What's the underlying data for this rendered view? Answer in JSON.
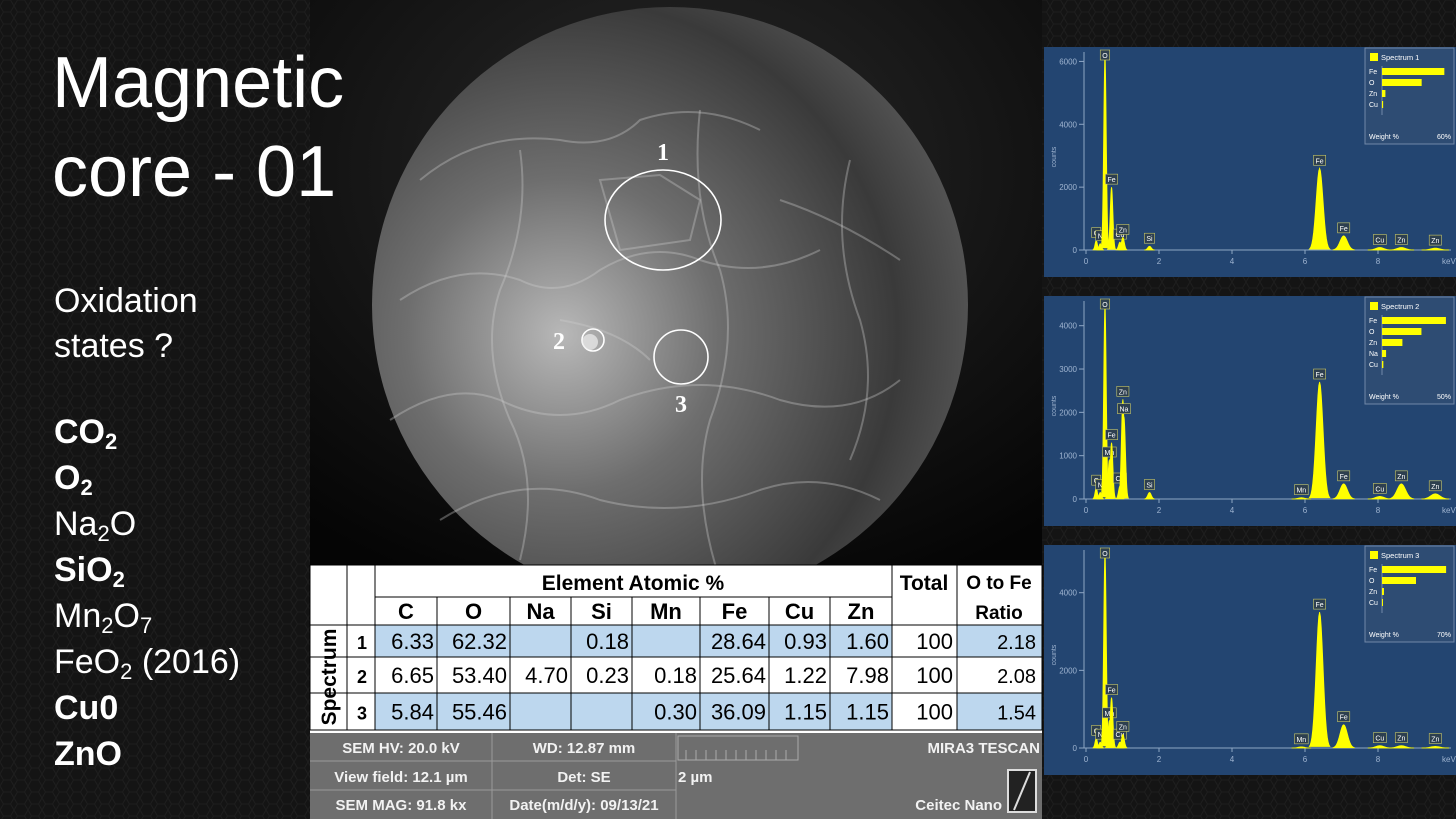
{
  "title": {
    "lines": [
      "Magnetic",
      "core - 01"
    ]
  },
  "question": {
    "lines": [
      "Oxidation",
      "states ?"
    ]
  },
  "compounds": [
    {
      "segments": [
        "CO",
        "2"
      ],
      "bold": true
    },
    {
      "segments": [
        "O",
        "2"
      ],
      "bold": true
    },
    {
      "segments": [
        "Na",
        "2",
        "O"
      ],
      "bold": false
    },
    {
      "segments": [
        "SiO",
        "2"
      ],
      "bold": true
    },
    {
      "segments": [
        "Mn",
        "2",
        "O",
        "7"
      ],
      "bold": false
    },
    {
      "segments": [
        "FeO",
        "2",
        " (2016)"
      ],
      "bold": false
    },
    {
      "segments": [
        "Cu0"
      ],
      "bold": true
    },
    {
      "segments": [
        "ZnO"
      ],
      "bold": true
    }
  ],
  "sem_image": {
    "regions": [
      "1",
      "2",
      "3"
    ]
  },
  "table": {
    "group_header": "Element Atomic %",
    "total_header": "Total",
    "ratio_header": [
      "O to Fe",
      "Ratio"
    ],
    "row_header": "Spectrum",
    "columns": [
      "C",
      "O",
      "Na",
      "Si",
      "Mn",
      "Fe",
      "Cu",
      "Zn"
    ],
    "rows": [
      {
        "label": "1",
        "cells": [
          "6.33",
          "62.32",
          null,
          "0.18",
          null,
          "28.64",
          "0.93",
          "1.60"
        ],
        "total": "100",
        "ratio": "2.18",
        "shaded": true
      },
      {
        "label": "2",
        "cells": [
          "6.65",
          "53.40",
          "4.70",
          "0.23",
          "0.18",
          "25.64",
          "1.22",
          "7.98"
        ],
        "total": "100",
        "ratio": "2.08",
        "shaded": false
      },
      {
        "label": "3",
        "cells": [
          "5.84",
          "55.46",
          null,
          null,
          "0.30",
          "36.09",
          "1.15",
          "1.15"
        ],
        "total": "100",
        "ratio": "1.54",
        "shaded": true
      }
    ]
  },
  "info_bar": {
    "hv": "SEM HV: 20.0 kV",
    "wd": "WD: 12.87 mm",
    "brand": "MIRA3 TESCAN",
    "view_field": "View field: 12.1 µm",
    "detector": "Det: SE",
    "scale": "2 µm",
    "mag": "SEM MAG: 91.8 kx",
    "date": "Date(m/d/y): 09/13/21",
    "lab": "Ceitec Nano"
  },
  "spectra": [
    {
      "legend_title": "Spectrum 1",
      "y_axis_label": "counts",
      "x_axis_label": "keV",
      "color": "#ffff00",
      "xlim": [
        0,
        10
      ],
      "xticks": [
        0,
        2,
        4,
        6,
        8
      ],
      "ylim": [
        0,
        6300
      ],
      "yticks": [
        0,
        2000,
        4000,
        6000
      ],
      "peaks": [
        {
          "label": "C",
          "x": 0.28,
          "y": 300
        },
        {
          "label": "N",
          "x": 0.39,
          "y": 200
        },
        {
          "label": "O",
          "x": 0.52,
          "y": 6200
        },
        {
          "label": "Fe",
          "x": 0.7,
          "y": 2000
        },
        {
          "label": "Cu",
          "x": 0.93,
          "y": 250
        },
        {
          "label": "Zn",
          "x": 1.01,
          "y": 400
        },
        {
          "label": "Si",
          "x": 1.74,
          "y": 120
        },
        {
          "label": "Fe",
          "x": 6.4,
          "y": 2600
        },
        {
          "label": "Fe",
          "x": 7.06,
          "y": 450
        },
        {
          "label": "Cu",
          "x": 8.05,
          "y": 80
        },
        {
          "label": "Zn",
          "x": 8.64,
          "y": 80
        },
        {
          "label": "Zn",
          "x": 9.57,
          "y": 60
        }
      ],
      "weights": {
        "label": "Weight %",
        "elements": [
          "Fe",
          "O",
          "Zn",
          "Cu"
        ],
        "values": [
          55,
          35,
          3,
          1
        ],
        "max": {
          "value": 60,
          "label": "60%"
        }
      }
    },
    {
      "legend_title": "Spectrum 2",
      "y_axis_label": "counts",
      "x_axis_label": "keV",
      "color": "#ffff00",
      "xlim": [
        0,
        10
      ],
      "xticks": [
        0,
        2,
        4,
        6,
        8
      ],
      "ylim": [
        0,
        4570
      ],
      "yticks": [
        0,
        1000,
        2000,
        3000,
        4000
      ],
      "peaks": [
        {
          "label": "C",
          "x": 0.28,
          "y": 250
        },
        {
          "label": "N",
          "x": 0.39,
          "y": 150
        },
        {
          "label": "O",
          "x": 0.52,
          "y": 4500
        },
        {
          "label": "Mn",
          "x": 0.64,
          "y": 900
        },
        {
          "label": "Fe",
          "x": 0.7,
          "y": 1300
        },
        {
          "label": "Cu",
          "x": 0.93,
          "y": 300
        },
        {
          "label": "Zn",
          "x": 1.01,
          "y": 2300
        },
        {
          "label": "Na",
          "x": 1.04,
          "y": 1900
        },
        {
          "label": "Si",
          "x": 1.74,
          "y": 150
        },
        {
          "label": "Mn",
          "x": 5.9,
          "y": 30
        },
        {
          "label": "Fe",
          "x": 6.4,
          "y": 2700
        },
        {
          "label": "Fe",
          "x": 7.06,
          "y": 350
        },
        {
          "label": "Cu",
          "x": 8.05,
          "y": 60
        },
        {
          "label": "Zn",
          "x": 8.64,
          "y": 350
        },
        {
          "label": "Zn",
          "x": 9.57,
          "y": 120
        }
      ],
      "weights": {
        "label": "Weight %",
        "elements": [
          "Fe",
          "O",
          "Zn",
          "Na",
          "Cu"
        ],
        "values": [
          47,
          29,
          15,
          3,
          1
        ],
        "max": {
          "value": 50,
          "label": "50%"
        }
      }
    },
    {
      "legend_title": "Spectrum 3",
      "y_axis_label": "counts",
      "x_axis_label": "keV",
      "color": "#ffff00",
      "xlim": [
        0,
        10
      ],
      "xticks": [
        0,
        2,
        4,
        6,
        8
      ],
      "ylim": [
        0,
        5100
      ],
      "yticks": [
        0,
        2000,
        4000
      ],
      "peaks": [
        {
          "label": "C",
          "x": 0.28,
          "y": 250
        },
        {
          "label": "N",
          "x": 0.39,
          "y": 150
        },
        {
          "label": "O",
          "x": 0.52,
          "y": 5050
        },
        {
          "label": "Mn",
          "x": 0.64,
          "y": 700
        },
        {
          "label": "Fe",
          "x": 0.7,
          "y": 1300
        },
        {
          "label": "Cu",
          "x": 0.93,
          "y": 150
        },
        {
          "label": "Zn",
          "x": 1.01,
          "y": 350
        },
        {
          "label": "Mn",
          "x": 5.9,
          "y": 30
        },
        {
          "label": "Fe",
          "x": 6.4,
          "y": 3500
        },
        {
          "label": "Fe",
          "x": 7.06,
          "y": 600
        },
        {
          "label": "Cu",
          "x": 8.05,
          "y": 60
        },
        {
          "label": "Zn",
          "x": 8.64,
          "y": 60
        },
        {
          "label": "Zn",
          "x": 9.57,
          "y": 40
        }
      ],
      "weights": {
        "label": "Weight %",
        "elements": [
          "Fe",
          "O",
          "Zn",
          "Cu"
        ],
        "values": [
          66,
          35,
          2,
          1
        ],
        "max": {
          "value": 70,
          "label": "70%"
        }
      }
    }
  ]
}
